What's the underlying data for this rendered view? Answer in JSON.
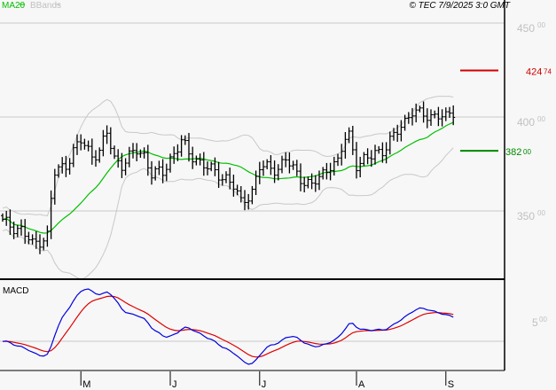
{
  "header": {
    "legend_ma": "MA20",
    "legend_bb": "BBands",
    "copyright": "© TEC 7/9/2025 3:0 GMT"
  },
  "colors": {
    "ma": "#00c000",
    "bb": "#c8c8c8",
    "macd": "#0000e0",
    "signal": "#e00000",
    "resistance": "#d00000",
    "support": "#008800"
  },
  "chart_data": {
    "type": "ohlc",
    "title": "",
    "ylim": [
      314,
      456
    ],
    "yticks": [
      {
        "value": 450,
        "main": "450",
        "dec": "00"
      },
      {
        "value": 400,
        "main": "400",
        "dec": "00"
      },
      {
        "value": 350,
        "main": "350",
        "dec": "00"
      }
    ],
    "close_anchors": [
      [
        0,
        344
      ],
      [
        5,
        340
      ],
      [
        8,
        332
      ],
      [
        12,
        337
      ],
      [
        13,
        356
      ],
      [
        14,
        370
      ],
      [
        17,
        375
      ],
      [
        19,
        382
      ],
      [
        21,
        387
      ],
      [
        24,
        380
      ],
      [
        26,
        382
      ],
      [
        28,
        391
      ],
      [
        30,
        378
      ],
      [
        32,
        375
      ],
      [
        36,
        382
      ],
      [
        38,
        380
      ],
      [
        40,
        370
      ],
      [
        43,
        370
      ],
      [
        45,
        378
      ],
      [
        48,
        387
      ],
      [
        50,
        380
      ],
      [
        52,
        378
      ],
      [
        55,
        373
      ],
      [
        57,
        370
      ],
      [
        60,
        368
      ],
      [
        62,
        363
      ],
      [
        64,
        354
      ],
      [
        67,
        361
      ],
      [
        69,
        373
      ],
      [
        71,
        373
      ],
      [
        74,
        373
      ],
      [
        76,
        377
      ],
      [
        79,
        370
      ],
      [
        81,
        366
      ],
      [
        83,
        363
      ],
      [
        86,
        370
      ],
      [
        88,
        375
      ],
      [
        90,
        375
      ],
      [
        92,
        389
      ],
      [
        93,
        391
      ],
      [
        95,
        375
      ],
      [
        98,
        377
      ],
      [
        100,
        382
      ],
      [
        102,
        382
      ],
      [
        105,
        389
      ],
      [
        107,
        396
      ],
      [
        110,
        403
      ],
      [
        112,
        401
      ],
      [
        114,
        401
      ],
      [
        117,
        401
      ],
      [
        119,
        399
      ],
      [
        121,
        403
      ]
    ],
    "bars": 122,
    "levels": [
      {
        "name": "resistance",
        "value": 424.74,
        "main": "424",
        "dec": "74"
      },
      {
        "name": "support",
        "value": 382.0,
        "main": "382",
        "dec": "00"
      }
    ],
    "indicators": {
      "ma_period": 20,
      "bb_dev": 2
    },
    "macd": {
      "label": "MACD",
      "ytick": {
        "main": "5",
        "dec": "00"
      },
      "fast": 12,
      "slow": 26,
      "signal": 9
    },
    "xticks": [
      {
        "bar": 21,
        "label": "M"
      },
      {
        "bar": 45,
        "label": "J"
      },
      {
        "bar": 69,
        "label": "J"
      },
      {
        "bar": 95,
        "label": "A"
      },
      {
        "bar": 119,
        "label": "S"
      }
    ]
  }
}
